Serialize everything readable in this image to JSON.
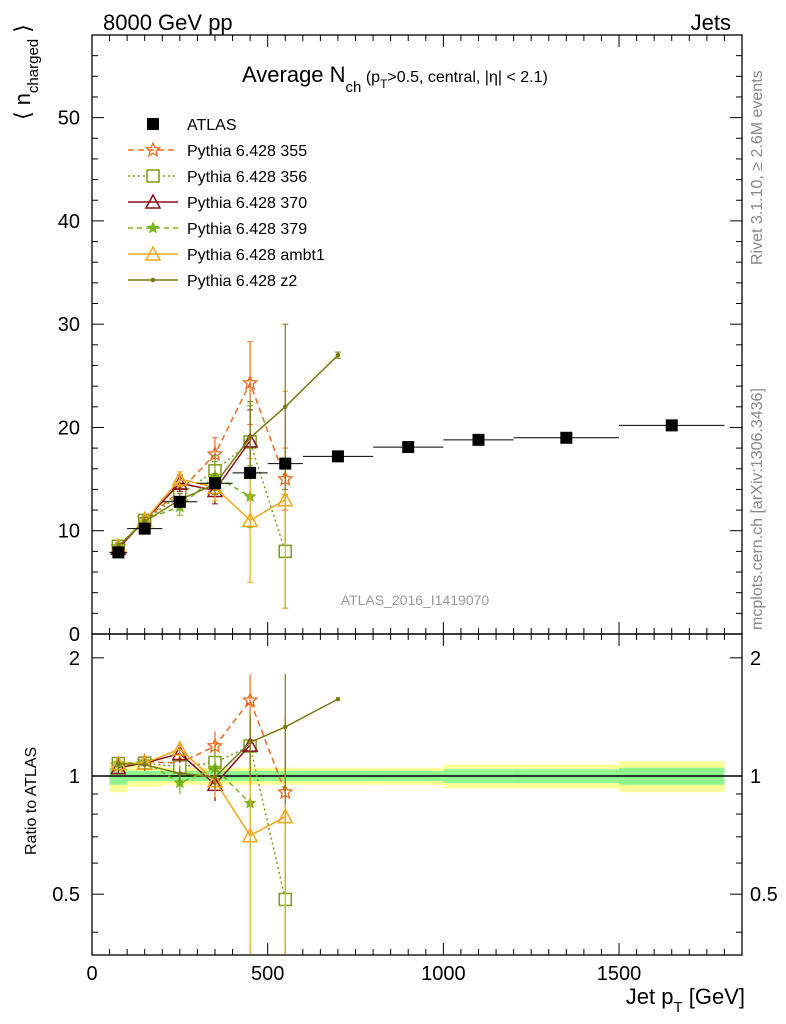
{
  "header": {
    "left": "8000 GeV pp",
    "right": "Jets"
  },
  "side_labels": {
    "rivet": "Rivet 3.1.10, ≥ 2.6M events",
    "mcplots": "mcplots.cern.ch [arXiv:1306.3436]"
  },
  "watermark": "ATLAS_2016_I1419070",
  "main_title": {
    "prefix": "Average N",
    "sub": "ch",
    "open": " (p",
    "pt_sub": "T",
    "rest": ">0.5, central, |η| < 2.1)"
  },
  "y_label": {
    "open": "⟨ n",
    "sub": "charged",
    "close": " ⟩"
  },
  "ratio_ylabel": "Ratio to ATLAS",
  "x_label": {
    "text": "Jet p",
    "sub": "T",
    "unit": " [GeV]"
  },
  "colors": {
    "atlas": "#000000",
    "p355": "#ee6a1e",
    "p356": "#7f9a1a",
    "p370": "#8b0e1e",
    "p379": "#76b51c",
    "ambt1": "#f0a818",
    "z2": "#7a7a10",
    "band_inner": "#8ff58f",
    "band_outer": "#ffff99"
  },
  "chart_data": {
    "type": "scatter",
    "xlabel": "Jet pT [GeV]",
    "ylabel": "⟨ n_charged ⟩",
    "xlim": [
      0,
      1850
    ],
    "ylim": [
      0,
      58
    ],
    "ratio_ylim": [
      0.35,
      2.3
    ],
    "x_ticks": [
      0,
      500,
      1000,
      1500
    ],
    "y_ticks": [
      10,
      20,
      30,
      40,
      50
    ],
    "ratio_ticks": [
      0.5,
      1,
      2
    ],
    "y_tick_zero": "0",
    "x_tick_labels": [
      "0",
      "500",
      "1000",
      "1500"
    ],
    "y_tick_labels": [
      "10",
      "20",
      "30",
      "40",
      "50"
    ],
    "ratio_tick_labels": [
      "0.5",
      "1",
      "2"
    ],
    "legend_position": "top-left",
    "atlas": {
      "name": "ATLAS",
      "x": [
        75,
        150,
        250,
        350,
        450,
        550,
        700,
        900,
        1100,
        1350,
        1650
      ],
      "xlo": [
        50,
        100,
        200,
        300,
        400,
        500,
        600,
        800,
        1000,
        1200,
        1500
      ],
      "xhi": [
        100,
        200,
        300,
        400,
        500,
        600,
        800,
        1000,
        1200,
        1500,
        1800
      ],
      "y": [
        7.9,
        10.2,
        12.8,
        14.6,
        15.6,
        16.5,
        17.2,
        18.1,
        18.8,
        19.0,
        20.2
      ],
      "band_inner": [
        0.05,
        0.03,
        0.03,
        0.03,
        0.03,
        0.03,
        0.03,
        0.03,
        0.04,
        0.04,
        0.05
      ],
      "band_outer": [
        0.09,
        0.06,
        0.05,
        0.05,
        0.05,
        0.05,
        0.05,
        0.05,
        0.07,
        0.07,
        0.09
      ]
    },
    "series": [
      {
        "name": "Pythia 6.428 355",
        "key": "p355",
        "x": [
          75,
          150,
          250,
          350,
          450,
          550
        ],
        "y": [
          8.4,
          11.1,
          13.8,
          17.4,
          24.3,
          15.0
        ],
        "err": [
          0.3,
          0.4,
          0.8,
          1.6,
          4.0,
          3.0
        ]
      },
      {
        "name": "Pythia 6.428 356",
        "key": "p356",
        "x": [
          75,
          150,
          250,
          350,
          450,
          550
        ],
        "y": [
          8.5,
          11.0,
          13.5,
          15.8,
          18.6,
          8.0
        ],
        "err": [
          0.3,
          0.4,
          0.8,
          1.5,
          3.5,
          5.5
        ]
      },
      {
        "name": "Pythia 6.428 370",
        "key": "p370",
        "x": [
          75,
          150,
          250,
          350,
          450
        ],
        "y": [
          8.3,
          11.0,
          14.6,
          13.9,
          18.7
        ],
        "err": [
          0.3,
          0.4,
          0.8,
          1.3,
          3.0
        ]
      },
      {
        "name": "Pythia 6.428 379",
        "key": "p379",
        "x": [
          75,
          150,
          250,
          350,
          450
        ],
        "y": [
          8.5,
          11.1,
          12.3,
          15.3,
          13.3
        ],
        "err": [
          0.3,
          0.4,
          0.8,
          1.4,
          3.0
        ]
      },
      {
        "name": "Pythia 6.428 ambt1",
        "key": "ambt1",
        "x": [
          75,
          150,
          250,
          350,
          450,
          550
        ],
        "y": [
          8.5,
          11.0,
          15.0,
          14.2,
          11.0,
          13.0
        ],
        "err": [
          0.3,
          0.4,
          0.7,
          1.3,
          6.0,
          10.5
        ]
      },
      {
        "name": "Pythia 6.428 z2",
        "key": "z2",
        "x": [
          75,
          150,
          250,
          350,
          450,
          550,
          700
        ],
        "y": [
          8.5,
          10.9,
          13.0,
          14.5,
          19.0,
          22.0,
          27.0
        ],
        "err": [
          0.3,
          0.4,
          0.6,
          1.0,
          3.5,
          8.0,
          0.3
        ]
      }
    ]
  }
}
